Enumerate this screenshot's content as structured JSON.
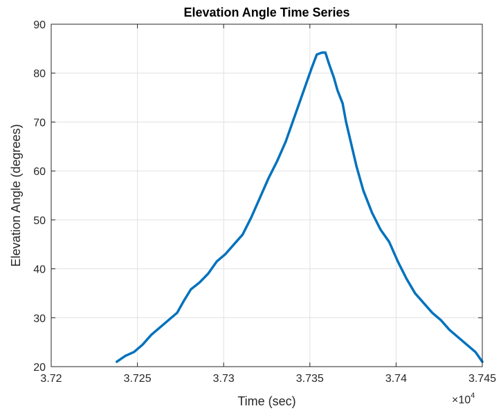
{
  "chart_data": {
    "type": "line",
    "title": "Elevation Angle Time Series",
    "xlabel": "Time (sec)",
    "ylabel": "Elevation Angle (degrees)",
    "x_multiplier_base": "×10",
    "x_multiplier_exponent": "4",
    "xlim": [
      3.72,
      3.745
    ],
    "ylim": [
      20,
      90
    ],
    "x_ticks": [
      3.72,
      3.725,
      3.73,
      3.735,
      3.74,
      3.745
    ],
    "x_tick_labels": [
      "3.72",
      "3.725",
      "3.73",
      "3.735",
      "3.74",
      "3.745"
    ],
    "y_ticks": [
      20,
      30,
      40,
      50,
      60,
      70,
      80,
      90
    ],
    "y_tick_labels": [
      "20",
      "30",
      "40",
      "50",
      "60",
      "70",
      "80",
      "90"
    ],
    "grid": true,
    "line_color": "#0072BD",
    "series": [
      {
        "x": [
          3.7238,
          3.7243,
          3.7248,
          3.7253,
          3.7258,
          3.7263,
          3.7268,
          3.7273,
          3.7277,
          3.7281,
          3.7286,
          3.7291,
          3.7296,
          3.7301,
          3.7306,
          3.7311,
          3.7316,
          3.7321,
          3.7326,
          3.7331,
          3.7336,
          3.7341,
          3.7346,
          3.7351,
          3.7354,
          3.7357,
          3.7359,
          3.7361,
          3.7364,
          3.7366,
          3.7369,
          3.7371,
          3.7374,
          3.7377,
          3.7381,
          3.7386,
          3.7391,
          3.7396,
          3.7401,
          3.7406,
          3.7411,
          3.7416,
          3.7421,
          3.7426,
          3.7431,
          3.7436,
          3.7441,
          3.7446,
          3.745
        ],
        "y": [
          21.0,
          22.2,
          23.0,
          24.5,
          26.5,
          28.0,
          29.5,
          31.0,
          33.5,
          35.8,
          37.2,
          39.0,
          41.5,
          43.0,
          45.0,
          47.0,
          50.5,
          54.5,
          58.5,
          62.0,
          66.0,
          71.0,
          76.0,
          81.0,
          83.8,
          84.2,
          84.2,
          82.0,
          79.0,
          76.5,
          73.8,
          70.0,
          65.5,
          61.0,
          56.0,
          51.5,
          48.0,
          45.5,
          41.5,
          38.0,
          35.0,
          33.0,
          31.0,
          29.5,
          27.5,
          26.0,
          24.5,
          23.0,
          21.0
        ]
      }
    ]
  }
}
